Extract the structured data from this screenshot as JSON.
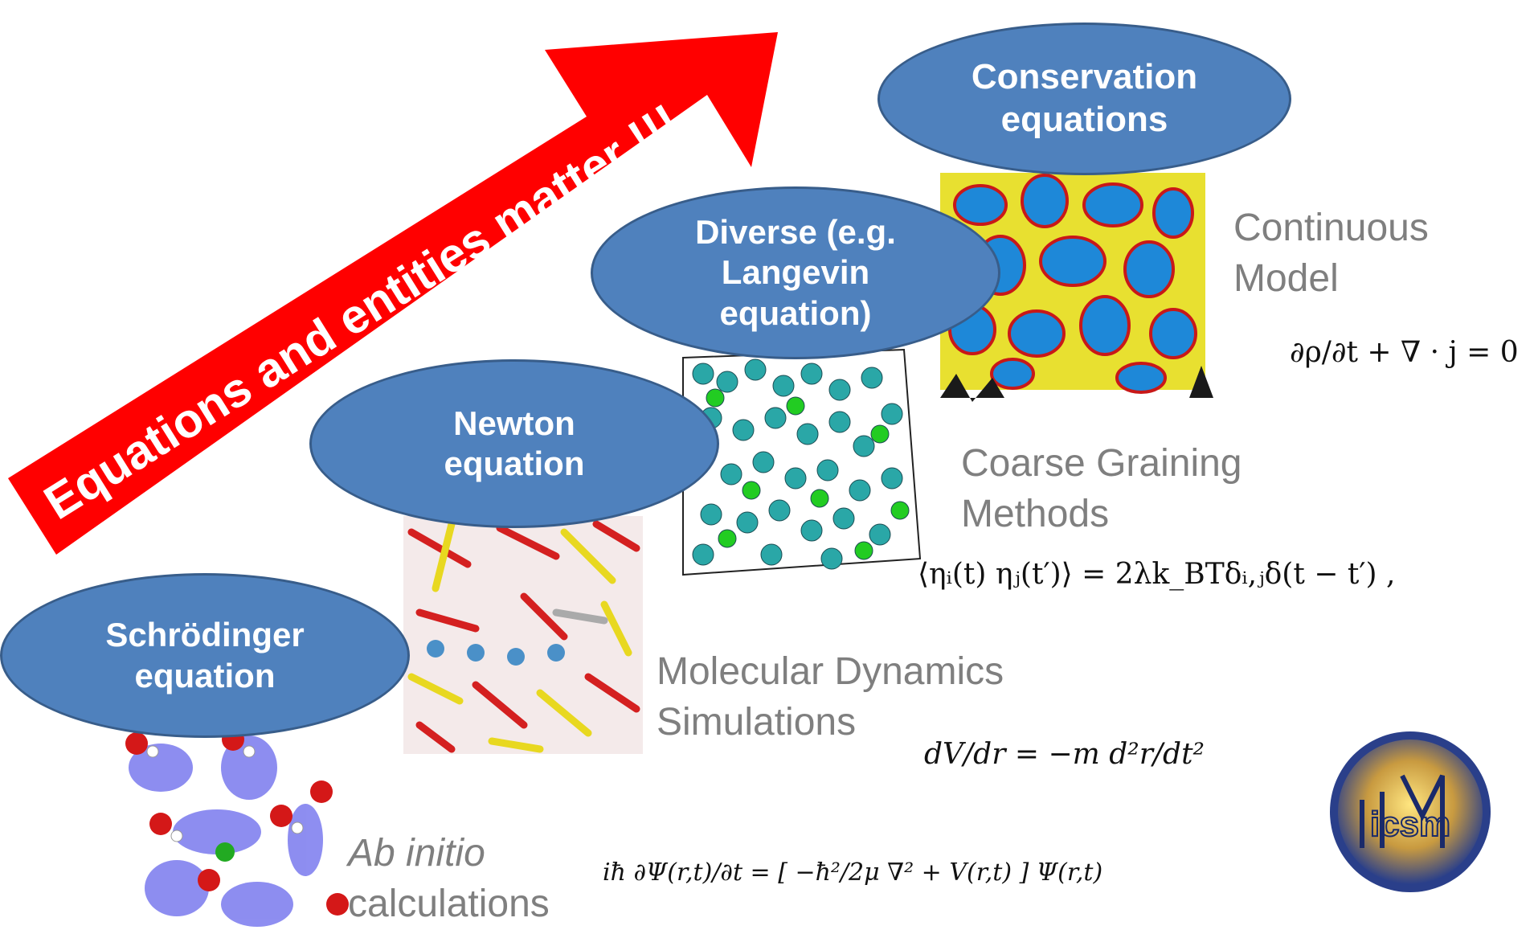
{
  "arrow": {
    "text": "Equations and entities matter !!!",
    "color": "#ff0000"
  },
  "levels": [
    {
      "bubble": "Schrödinger\nequation",
      "label": "Ab initio\ncalculations",
      "equation": "iħ ∂Ψ(r,t)/∂t = [ −ħ²/2μ ∇² + V(r,t) ] Ψ(r,t)"
    },
    {
      "bubble": "Newton\nequation",
      "label": "Molecular Dynamics\nSimulations",
      "equation": "dV/dr = −m d²r/dt²"
    },
    {
      "bubble": "Diverse (e.g.\nLangevin\nequation)",
      "label": "Coarse Graining\nMethods",
      "equation": "⟨ηᵢ(t) ηⱼ(t′)⟩ = 2λk_BTδᵢ,ⱼδ(t − t′) ,"
    },
    {
      "bubble": "Conservation\nequations",
      "label": "Continuous\nModel",
      "equation": "∂ρ/∂t + ∇ · j = 0"
    }
  ],
  "logo": {
    "text": "icsm"
  },
  "colors": {
    "bubble_fill": "#4f81bd",
    "bubble_border": "#385d8a",
    "label_gray": "#7f7f7f"
  }
}
